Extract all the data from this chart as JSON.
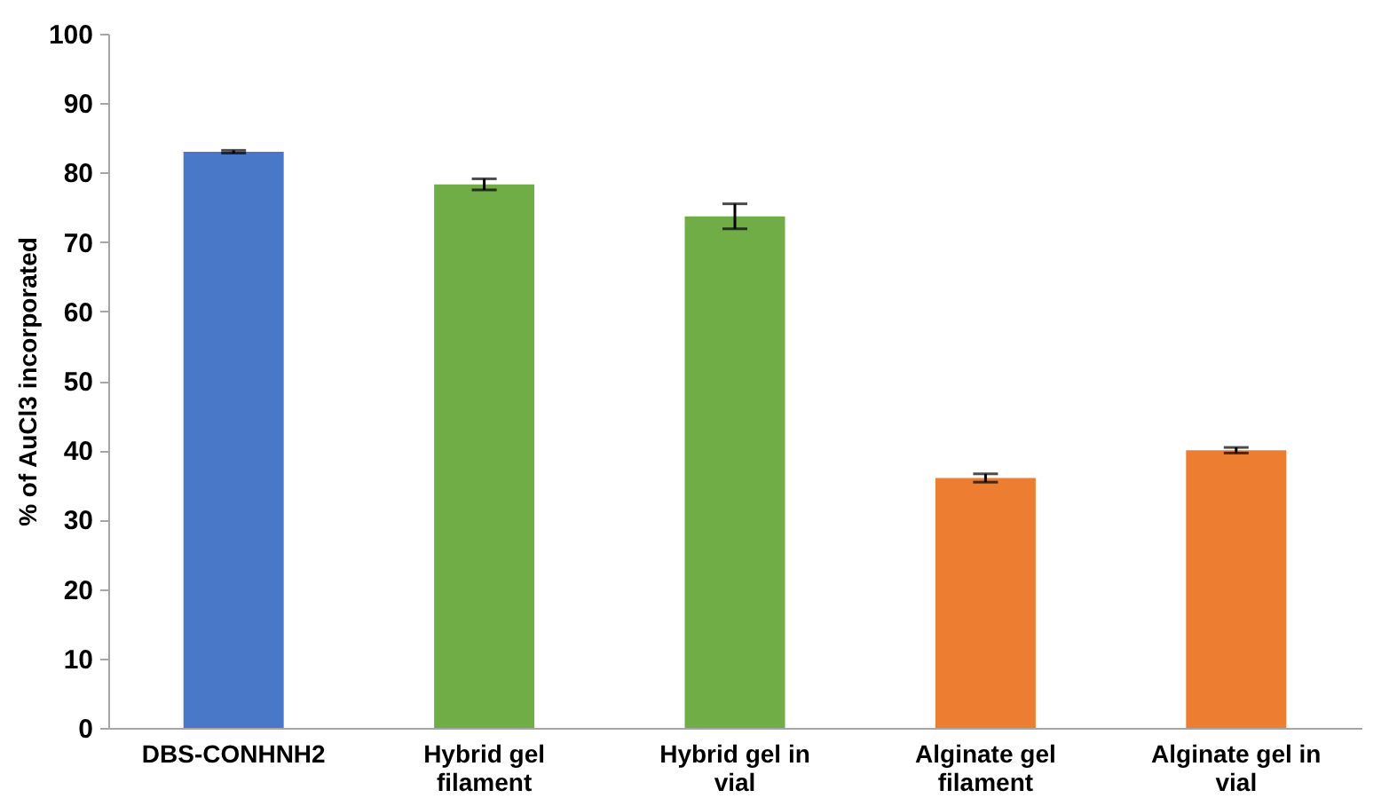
{
  "chart_data": {
    "type": "bar",
    "ylabel": "% of AuCl3 incorporated",
    "categories": [
      "DBS-CONHNH2",
      "Hybrid gel filament",
      "Hybrid gel in vial",
      "Alginate gel filament",
      "Alginate gel in vial"
    ],
    "values": [
      83,
      78.3,
      73.7,
      36,
      40
    ],
    "errors": [
      0.2,
      0.8,
      1.8,
      0.6,
      0.4
    ],
    "colors": [
      "#4a78c8",
      "#70ad47",
      "#70ad47",
      "#ed7d31",
      "#ed7d31"
    ],
    "ylim": [
      0,
      100
    ],
    "yticks": [
      0,
      10,
      20,
      30,
      40,
      50,
      60,
      70,
      80,
      90,
      100
    ],
    "grid": false
  }
}
